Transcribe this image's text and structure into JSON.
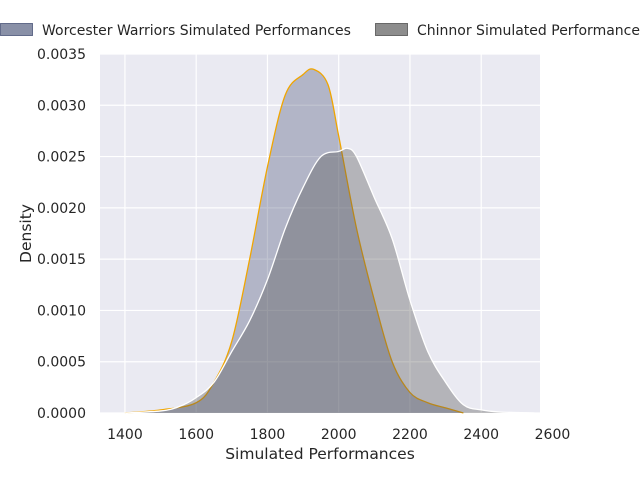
{
  "chart_data": {
    "type": "area",
    "xlabel": "Simulated Performances",
    "ylabel": "Density",
    "xlim": [
      1330,
      2565
    ],
    "ylim": [
      0,
      0.0035
    ],
    "x_ticks": [
      1400,
      1600,
      1800,
      2000,
      2200,
      2400,
      2600
    ],
    "x_tick_labels": [
      "1400",
      "1600",
      "1800",
      "2000",
      "2200",
      "2400",
      "2600"
    ],
    "y_ticks": [
      0,
      0.0005,
      0.001,
      0.0015,
      0.002,
      0.0025,
      0.003,
      0.0035
    ],
    "y_tick_labels": [
      "0.0000",
      "0.0005",
      "0.0010",
      "0.0015",
      "0.0020",
      "0.0025",
      "0.0030",
      "0.0035"
    ],
    "grid": true,
    "legend_position": "top",
    "series": [
      {
        "name": "Worcester Warriors Simulated Performances",
        "fill": "#4a5478",
        "fill_opacity": 0.35,
        "stroke": "#f0a500",
        "points": [
          [
            1400,
            0
          ],
          [
            1500,
            3e-05
          ],
          [
            1600,
            0.0001
          ],
          [
            1650,
            0.0003
          ],
          [
            1700,
            0.0007
          ],
          [
            1750,
            0.0015
          ],
          [
            1800,
            0.0024
          ],
          [
            1850,
            0.0031
          ],
          [
            1900,
            0.0033
          ],
          [
            1930,
            0.00335
          ],
          [
            1970,
            0.0032
          ],
          [
            2000,
            0.0027
          ],
          [
            2050,
            0.0018
          ],
          [
            2100,
            0.0011
          ],
          [
            2150,
            0.0005
          ],
          [
            2200,
            0.0002
          ],
          [
            2250,
            0.0001
          ],
          [
            2300,
            5e-05
          ],
          [
            2350,
            0
          ]
        ]
      },
      {
        "name": "Chinnor Simulated Performances",
        "fill": "#505050",
        "fill_opacity": 0.35,
        "stroke": "#ffffff",
        "points": [
          [
            1400,
            0
          ],
          [
            1500,
            2e-05
          ],
          [
            1550,
            6e-05
          ],
          [
            1600,
            0.00015
          ],
          [
            1650,
            0.0003
          ],
          [
            1700,
            0.0006
          ],
          [
            1750,
            0.0009
          ],
          [
            1800,
            0.0013
          ],
          [
            1850,
            0.0018
          ],
          [
            1900,
            0.0022
          ],
          [
            1950,
            0.0025
          ],
          [
            2000,
            0.00255
          ],
          [
            2025,
            0.00258
          ],
          [
            2050,
            0.0025
          ],
          [
            2100,
            0.0021
          ],
          [
            2150,
            0.0017
          ],
          [
            2200,
            0.0011
          ],
          [
            2250,
            0.0006
          ],
          [
            2300,
            0.0003
          ],
          [
            2350,
            8e-05
          ],
          [
            2400,
            3e-05
          ],
          [
            2450,
            1e-05
          ],
          [
            2550,
            0
          ]
        ]
      }
    ]
  }
}
